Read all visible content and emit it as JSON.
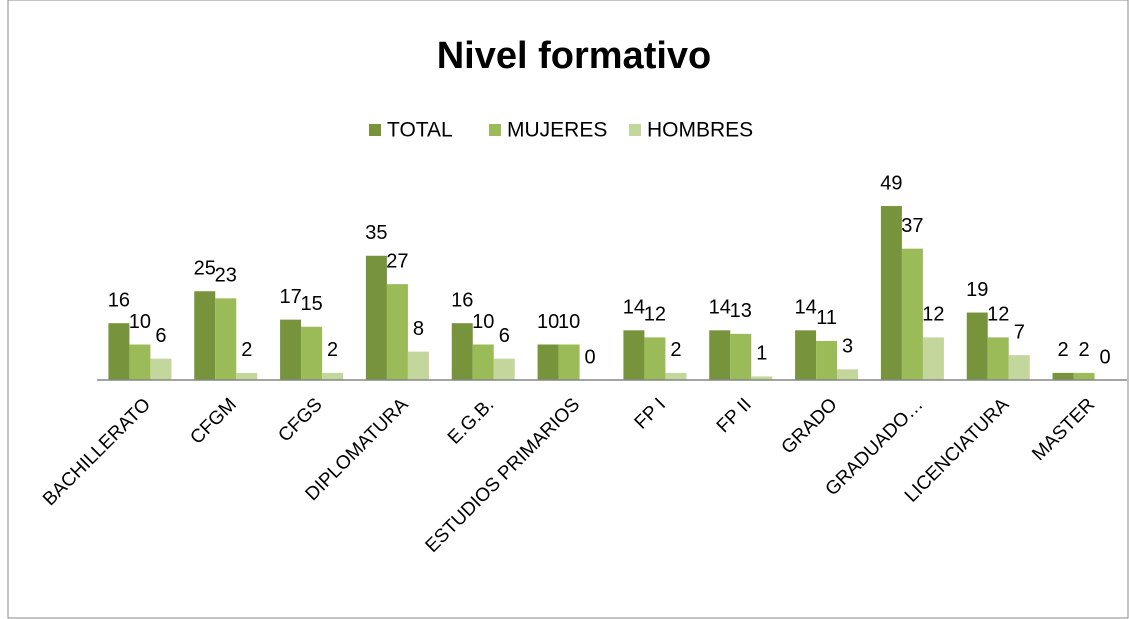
{
  "chart_data": {
    "type": "bar",
    "title": "Nivel formativo",
    "categories": [
      "BACHILLERATO",
      "CFGM",
      "CFGS",
      "DIPLOMATURA",
      "E.G.B.",
      "ESTUDIOS PRIMARIOS",
      "FP I",
      "FP II",
      "GRADO",
      "GRADUADO…",
      "LICENCIATURA",
      "MASTER"
    ],
    "series": [
      {
        "name": "TOTAL",
        "color": "#77933c",
        "values": [
          16,
          25,
          17,
          35,
          16,
          10,
          14,
          14,
          14,
          49,
          19,
          2
        ]
      },
      {
        "name": "MUJERES",
        "color": "#9bbb59",
        "values": [
          10,
          23,
          15,
          27,
          10,
          10,
          12,
          13,
          11,
          37,
          12,
          2
        ]
      },
      {
        "name": "HOMBRES",
        "color": "#c3d69b",
        "values": [
          6,
          2,
          2,
          8,
          6,
          0,
          2,
          1,
          3,
          12,
          7,
          0
        ]
      }
    ],
    "ylim": [
      0,
      60
    ],
    "legend": "top"
  }
}
